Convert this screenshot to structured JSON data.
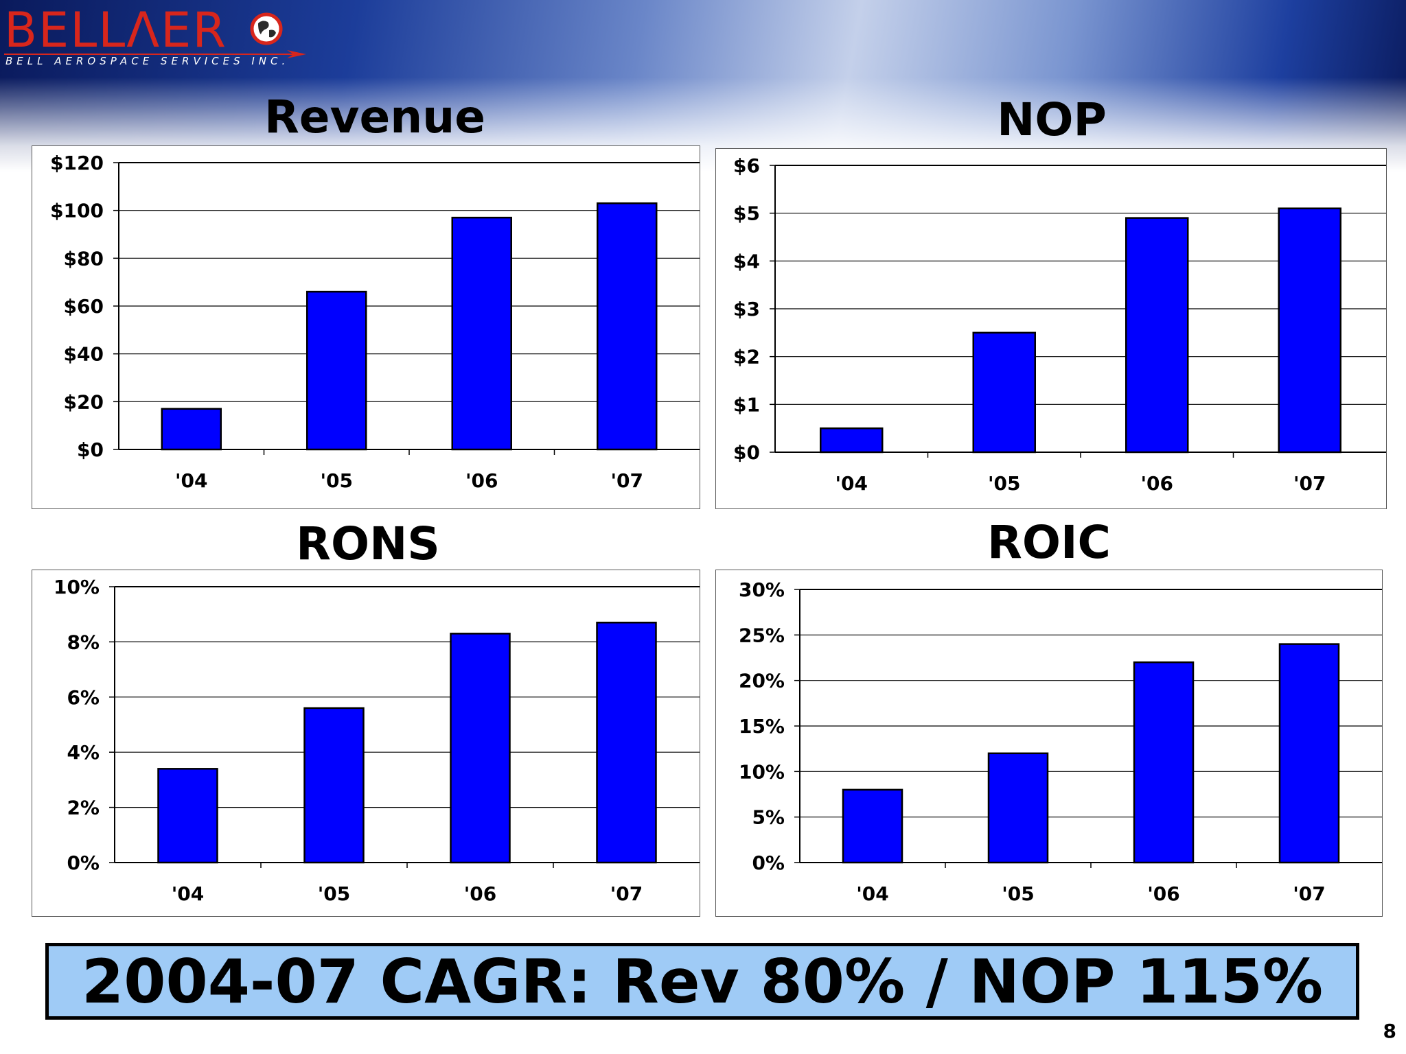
{
  "logo": {
    "main": "BELLΛER",
    "subtitle": "BELL AEROSPACE SERVICES INC."
  },
  "colors": {
    "bar_fill": "#0000ff",
    "summary_bg": "#9fcbf6",
    "logo_red": "#d8261c"
  },
  "chart_data": [
    {
      "type": "bar",
      "title": "Revenue",
      "categories": [
        "'04",
        "'05",
        "'06",
        "'07"
      ],
      "values": [
        17,
        66,
        97,
        103
      ],
      "ylim": [
        0,
        120
      ],
      "yticks": [
        "$0",
        "$20",
        "$40",
        "$60",
        "$80",
        "$100",
        "$120"
      ],
      "xlabel": "",
      "ylabel": "",
      "grid": true
    },
    {
      "type": "bar",
      "title": "NOP",
      "categories": [
        "'04",
        "'05",
        "'06",
        "'07"
      ],
      "values": [
        0.5,
        2.5,
        4.9,
        5.1
      ],
      "ylim": [
        0,
        6
      ],
      "yticks": [
        "$0",
        "$1",
        "$2",
        "$3",
        "$4",
        "$5",
        "$6"
      ],
      "xlabel": "",
      "ylabel": "",
      "grid": true
    },
    {
      "type": "bar",
      "title": "RONS",
      "categories": [
        "'04",
        "'05",
        "'06",
        "'07"
      ],
      "values": [
        3.4,
        5.6,
        8.3,
        8.7
      ],
      "ylim": [
        0,
        10
      ],
      "yticks": [
        "0%",
        "2%",
        "4%",
        "6%",
        "8%",
        "10%"
      ],
      "xlabel": "",
      "ylabel": "",
      "grid": true
    },
    {
      "type": "bar",
      "title": "ROIC",
      "categories": [
        "'04",
        "'05",
        "'06",
        "'07"
      ],
      "values": [
        8,
        12,
        22,
        24
      ],
      "ylim": [
        0,
        30
      ],
      "yticks": [
        "0%",
        "5%",
        "10%",
        "15%",
        "20%",
        "25%",
        "30%"
      ],
      "xlabel": "",
      "ylabel": "",
      "grid": true
    }
  ],
  "summary": "2004-07 CAGR: Rev 80% / NOP 115%",
  "page_number": "8"
}
